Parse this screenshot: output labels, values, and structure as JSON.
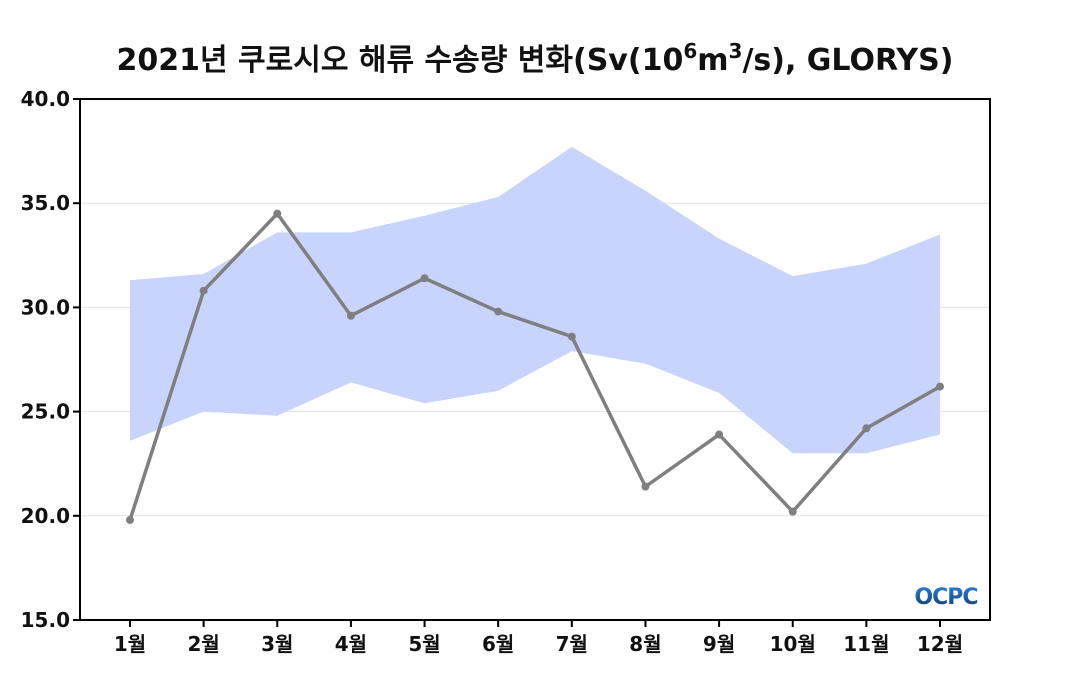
{
  "chart_data": {
    "type": "line",
    "title_main": "2021년 쿠로시오 해류 수송량 변화(Sv(10",
    "title_sup1": "6",
    "title_mid": "m",
    "title_sup2": "3",
    "title_end": "/s), GLORYS)",
    "categories": [
      "1월",
      "2월",
      "3월",
      "4월",
      "5월",
      "6월",
      "7월",
      "8월",
      "9월",
      "10월",
      "11월",
      "12월"
    ],
    "ylim": [
      15.0,
      40.0
    ],
    "yticks": [
      "15.0",
      "20.0",
      "25.0",
      "30.0",
      "35.0",
      "40.0"
    ],
    "grid": true,
    "series": [
      {
        "type": "line",
        "values": [
          19.8,
          30.8,
          34.5,
          29.6,
          31.4,
          29.8,
          28.6,
          21.4,
          23.9,
          20.2,
          24.2,
          26.2
        ],
        "color": "#7f7f7f"
      },
      {
        "type": "band",
        "upper": [
          31.3,
          31.6,
          33.6,
          33.6,
          34.4,
          35.3,
          37.7,
          35.6,
          33.3,
          31.5,
          32.1,
          33.5
        ],
        "lower": [
          23.6,
          25.0,
          24.8,
          26.4,
          25.4,
          26.0,
          27.9,
          27.3,
          25.9,
          23.0,
          23.0,
          23.9
        ],
        "color": "#c8d4fc"
      }
    ]
  },
  "logo": {
    "text": "OCPC",
    "color_dark": "#0b3a78",
    "color_light": "#2e7fd4"
  }
}
